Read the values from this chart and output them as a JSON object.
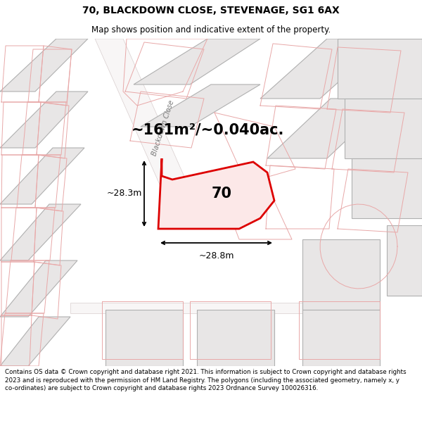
{
  "title_line1": "70, BLACKDOWN CLOSE, STEVENAGE, SG1 6AX",
  "title_line2": "Map shows position and indicative extent of the property.",
  "footer_text": "Contains OS data © Crown copyright and database right 2021. This information is subject to Crown copyright and database rights 2023 and is reproduced with the permission of HM Land Registry. The polygons (including the associated geometry, namely x, y co-ordinates) are subject to Crown copyright and database rights 2023 Ordnance Survey 100026316.",
  "area_label": "~161m²/~0.040ac.",
  "property_number": "70",
  "dim_width": "~28.8m",
  "dim_height": "~28.3m",
  "road_label": "Blackdown Close",
  "map_bg": "#f7f5f5",
  "building_gray_fill": "#e8e6e6",
  "building_gray_edge": "#b0b0b0",
  "parcel_pink_fill": "#f5eded",
  "parcel_pink_edge": "#e8b8b8",
  "property_fill": "#fce8e8",
  "property_edge": "#dd0000",
  "title_fontsize": 10,
  "subtitle_fontsize": 8.5,
  "footer_fontsize": 6.3
}
